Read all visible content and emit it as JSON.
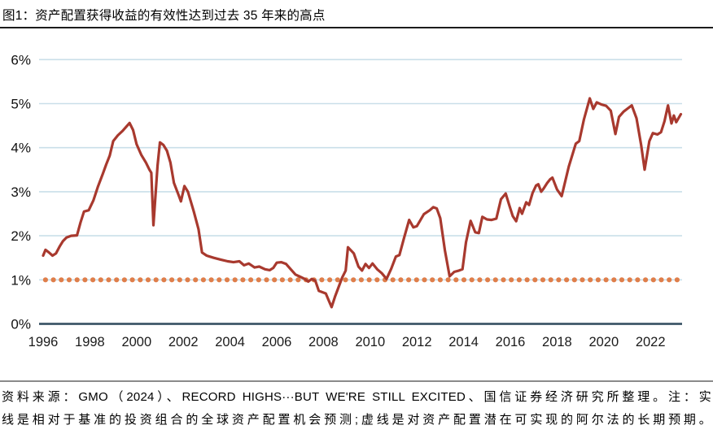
{
  "header": {
    "title": "图1：资产配置获得收益的有效性达到过去 35 年来的高点"
  },
  "footer": {
    "line1": "资料来源：GMO（2024）、RECORD HIGHS···BUT WE'RE STILL EXCITED、国信证券经济研究所整理。注：实",
    "line2": "线是相对于基准的投资组合的全球资产配置机会预测;虚线是对资产配置潜在可实现的阿尔法的长期预期。"
  },
  "chart_data": {
    "type": "line",
    "title": "图1：资产配置获得收益的有效性达到过去 35 年来的高点",
    "xlabel": "",
    "ylabel": "",
    "ylim": [
      0,
      6
    ],
    "xlim": [
      1996,
      2023.4
    ],
    "grid": "horizontal",
    "legend": "none",
    "y_ticks": [
      "0%",
      "1%",
      "2%",
      "3%",
      "4%",
      "5%",
      "6%"
    ],
    "x_ticks": [
      1996,
      1998,
      2000,
      2002,
      2004,
      2006,
      2008,
      2010,
      2012,
      2014,
      2016,
      2018,
      2020,
      2022
    ],
    "colors": {
      "solid_series": "#A8392E",
      "dotted_series": "#DF7E4A",
      "gridline": "#C9DFE9",
      "axis_baseline": "#3D5668",
      "tick_label": "#1b1b1b"
    },
    "series": [
      {
        "id": "solid_line",
        "style": "solid",
        "points": [
          [
            1996.0,
            1.55
          ],
          [
            1996.1,
            1.68
          ],
          [
            1996.25,
            1.62
          ],
          [
            1996.4,
            1.55
          ],
          [
            1996.55,
            1.6
          ],
          [
            1996.7,
            1.75
          ],
          [
            1996.85,
            1.88
          ],
          [
            1997.0,
            1.96
          ],
          [
            1997.2,
            2.0
          ],
          [
            1997.45,
            2.01
          ],
          [
            1997.6,
            2.3
          ],
          [
            1997.75,
            2.55
          ],
          [
            1997.95,
            2.58
          ],
          [
            1998.15,
            2.8
          ],
          [
            1998.35,
            3.12
          ],
          [
            1998.55,
            3.4
          ],
          [
            1998.7,
            3.62
          ],
          [
            1998.85,
            3.82
          ],
          [
            1999.0,
            4.15
          ],
          [
            1999.2,
            4.28
          ],
          [
            1999.4,
            4.38
          ],
          [
            1999.55,
            4.47
          ],
          [
            1999.7,
            4.56
          ],
          [
            1999.85,
            4.4
          ],
          [
            2000.0,
            4.08
          ],
          [
            2000.2,
            3.84
          ],
          [
            2000.4,
            3.66
          ],
          [
            2000.55,
            3.5
          ],
          [
            2000.63,
            3.43
          ],
          [
            2000.72,
            2.24
          ],
          [
            2000.9,
            3.6
          ],
          [
            2001.0,
            4.12
          ],
          [
            2001.15,
            4.06
          ],
          [
            2001.3,
            3.93
          ],
          [
            2001.45,
            3.66
          ],
          [
            2001.6,
            3.2
          ],
          [
            2001.8,
            2.92
          ],
          [
            2001.9,
            2.78
          ],
          [
            2002.05,
            3.13
          ],
          [
            2002.2,
            3.0
          ],
          [
            2002.45,
            2.55
          ],
          [
            2002.65,
            2.15
          ],
          [
            2002.8,
            1.62
          ],
          [
            2003.0,
            1.55
          ],
          [
            2003.3,
            1.5
          ],
          [
            2003.6,
            1.46
          ],
          [
            2003.9,
            1.42
          ],
          [
            2004.15,
            1.4
          ],
          [
            2004.4,
            1.42
          ],
          [
            2004.6,
            1.33
          ],
          [
            2004.8,
            1.37
          ],
          [
            2005.05,
            1.28
          ],
          [
            2005.25,
            1.3
          ],
          [
            2005.5,
            1.24
          ],
          [
            2005.7,
            1.22
          ],
          [
            2005.85,
            1.27
          ],
          [
            2006.0,
            1.39
          ],
          [
            2006.2,
            1.4
          ],
          [
            2006.4,
            1.36
          ],
          [
            2006.6,
            1.24
          ],
          [
            2006.8,
            1.12
          ],
          [
            2007.0,
            1.07
          ],
          [
            2007.2,
            1.02
          ],
          [
            2007.35,
            0.96
          ],
          [
            2007.5,
            1.02
          ],
          [
            2007.65,
            0.98
          ],
          [
            2007.8,
            0.75
          ],
          [
            2007.95,
            0.72
          ],
          [
            2008.1,
            0.69
          ],
          [
            2008.25,
            0.5
          ],
          [
            2008.35,
            0.38
          ],
          [
            2008.5,
            0.63
          ],
          [
            2008.65,
            0.84
          ],
          [
            2008.8,
            1.05
          ],
          [
            2008.95,
            1.21
          ],
          [
            2009.05,
            1.74
          ],
          [
            2009.3,
            1.6
          ],
          [
            2009.5,
            1.3
          ],
          [
            2009.65,
            1.21
          ],
          [
            2009.8,
            1.36
          ],
          [
            2009.95,
            1.27
          ],
          [
            2010.1,
            1.37
          ],
          [
            2010.3,
            1.24
          ],
          [
            2010.5,
            1.15
          ],
          [
            2010.7,
            1.02
          ],
          [
            2010.9,
            1.25
          ],
          [
            2011.1,
            1.53
          ],
          [
            2011.25,
            1.56
          ],
          [
            2011.45,
            1.95
          ],
          [
            2011.67,
            2.36
          ],
          [
            2011.85,
            2.19
          ],
          [
            2012.0,
            2.22
          ],
          [
            2012.3,
            2.49
          ],
          [
            2012.55,
            2.58
          ],
          [
            2012.7,
            2.65
          ],
          [
            2012.85,
            2.62
          ],
          [
            2013.0,
            2.4
          ],
          [
            2013.2,
            1.67
          ],
          [
            2013.4,
            1.08
          ],
          [
            2013.6,
            1.18
          ],
          [
            2013.8,
            1.21
          ],
          [
            2013.95,
            1.24
          ],
          [
            2014.1,
            1.85
          ],
          [
            2014.3,
            2.34
          ],
          [
            2014.5,
            2.08
          ],
          [
            2014.65,
            2.06
          ],
          [
            2014.8,
            2.43
          ],
          [
            2015.0,
            2.37
          ],
          [
            2015.2,
            2.36
          ],
          [
            2015.4,
            2.39
          ],
          [
            2015.6,
            2.83
          ],
          [
            2015.8,
            2.96
          ],
          [
            2015.95,
            2.7
          ],
          [
            2016.1,
            2.45
          ],
          [
            2016.25,
            2.33
          ],
          [
            2016.4,
            2.63
          ],
          [
            2016.5,
            2.5
          ],
          [
            2016.68,
            2.76
          ],
          [
            2016.8,
            2.7
          ],
          [
            2016.95,
            2.97
          ],
          [
            2017.1,
            3.14
          ],
          [
            2017.2,
            3.17
          ],
          [
            2017.32,
            3.0
          ],
          [
            2017.42,
            3.07
          ],
          [
            2017.58,
            3.2
          ],
          [
            2017.7,
            3.28
          ],
          [
            2017.8,
            3.32
          ],
          [
            2018.0,
            3.05
          ],
          [
            2018.2,
            2.9
          ],
          [
            2018.5,
            3.57
          ],
          [
            2018.8,
            4.09
          ],
          [
            2018.95,
            4.15
          ],
          [
            2019.15,
            4.64
          ],
          [
            2019.4,
            5.12
          ],
          [
            2019.55,
            4.88
          ],
          [
            2019.7,
            5.03
          ],
          [
            2019.9,
            4.98
          ],
          [
            2020.1,
            4.95
          ],
          [
            2020.3,
            4.84
          ],
          [
            2020.5,
            4.31
          ],
          [
            2020.65,
            4.7
          ],
          [
            2020.85,
            4.82
          ],
          [
            2021.0,
            4.88
          ],
          [
            2021.2,
            4.96
          ],
          [
            2021.4,
            4.67
          ],
          [
            2021.6,
            4.06
          ],
          [
            2021.75,
            3.5
          ],
          [
            2021.95,
            4.15
          ],
          [
            2022.1,
            4.33
          ],
          [
            2022.3,
            4.3
          ],
          [
            2022.45,
            4.35
          ],
          [
            2022.6,
            4.6
          ],
          [
            2022.75,
            4.96
          ],
          [
            2022.9,
            4.55
          ],
          [
            2023.0,
            4.73
          ],
          [
            2023.1,
            4.58
          ],
          [
            2023.3,
            4.76
          ]
        ]
      },
      {
        "id": "dotted_line",
        "style": "dotted",
        "value": 1.0,
        "x_range": [
          1996.1,
          2023.2
        ]
      }
    ]
  }
}
